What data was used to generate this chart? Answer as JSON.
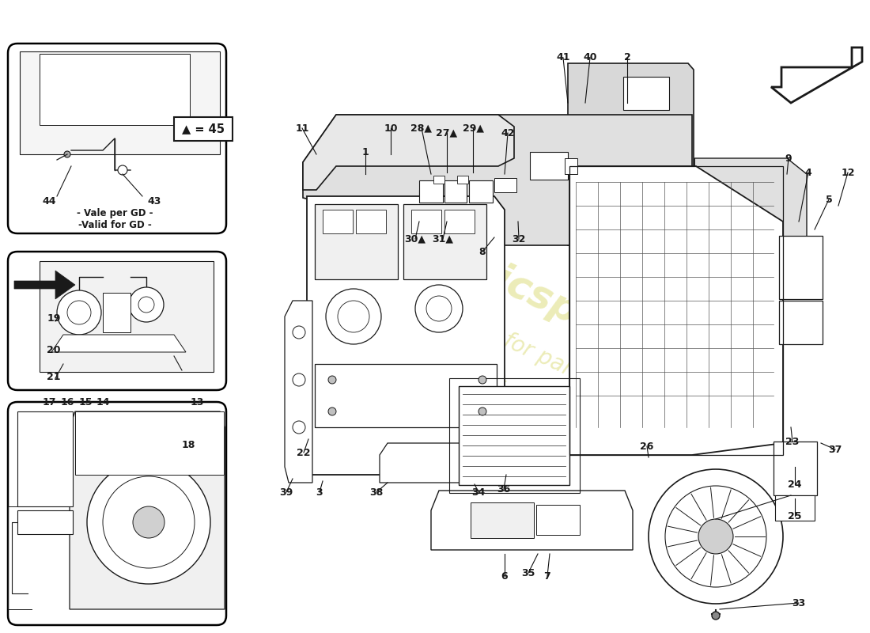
{
  "bg": "#ffffff",
  "lc": "#1a1a1a",
  "wm_color": "#c8c832",
  "labels_main": [
    [
      "1",
      462,
      192
    ],
    [
      "2",
      793,
      73
    ],
    [
      "3",
      404,
      622
    ],
    [
      "4",
      1022,
      218
    ],
    [
      "5",
      1048,
      252
    ],
    [
      "6",
      638,
      728
    ],
    [
      "7",
      692,
      728
    ],
    [
      "8",
      610,
      318
    ],
    [
      "9",
      997,
      200
    ],
    [
      "10",
      494,
      162
    ],
    [
      "11",
      382,
      162
    ],
    [
      "12",
      1072,
      218
    ],
    [
      "22",
      384,
      572
    ],
    [
      "23",
      1002,
      558
    ],
    [
      "24",
      1005,
      612
    ],
    [
      "25",
      1005,
      652
    ],
    [
      "26",
      818,
      564
    ],
    [
      "27▲",
      565,
      168
    ],
    [
      "28▲",
      533,
      162
    ],
    [
      "29▲",
      598,
      162
    ],
    [
      "30▲",
      525,
      302
    ],
    [
      "31▲",
      560,
      302
    ],
    [
      "32",
      656,
      302
    ],
    [
      "33",
      1010,
      762
    ],
    [
      "34",
      605,
      622
    ],
    [
      "35",
      668,
      724
    ],
    [
      "36",
      637,
      618
    ],
    [
      "37",
      1056,
      568
    ],
    [
      "38",
      476,
      622
    ],
    [
      "39",
      362,
      622
    ],
    [
      "40",
      746,
      73
    ],
    [
      "41",
      712,
      73
    ],
    [
      "42",
      642,
      168
    ]
  ],
  "labels_inset1": [
    [
      "44",
      62,
      255
    ],
    [
      "43",
      195,
      255
    ]
  ],
  "labels_inset2": [
    [
      "19",
      68,
      402
    ],
    [
      "20",
      68,
      442
    ],
    [
      "21",
      68,
      476
    ],
    [
      "18",
      238,
      562
    ]
  ],
  "labels_inset3": [
    [
      "17",
      62,
      508
    ],
    [
      "16",
      85,
      508
    ],
    [
      "15",
      108,
      508
    ],
    [
      "14",
      130,
      508
    ],
    [
      "13",
      249,
      508
    ]
  ],
  "note1": "- Vale per GD -",
  "note2": "-Valid for GD -",
  "legend": "▲ = 45"
}
